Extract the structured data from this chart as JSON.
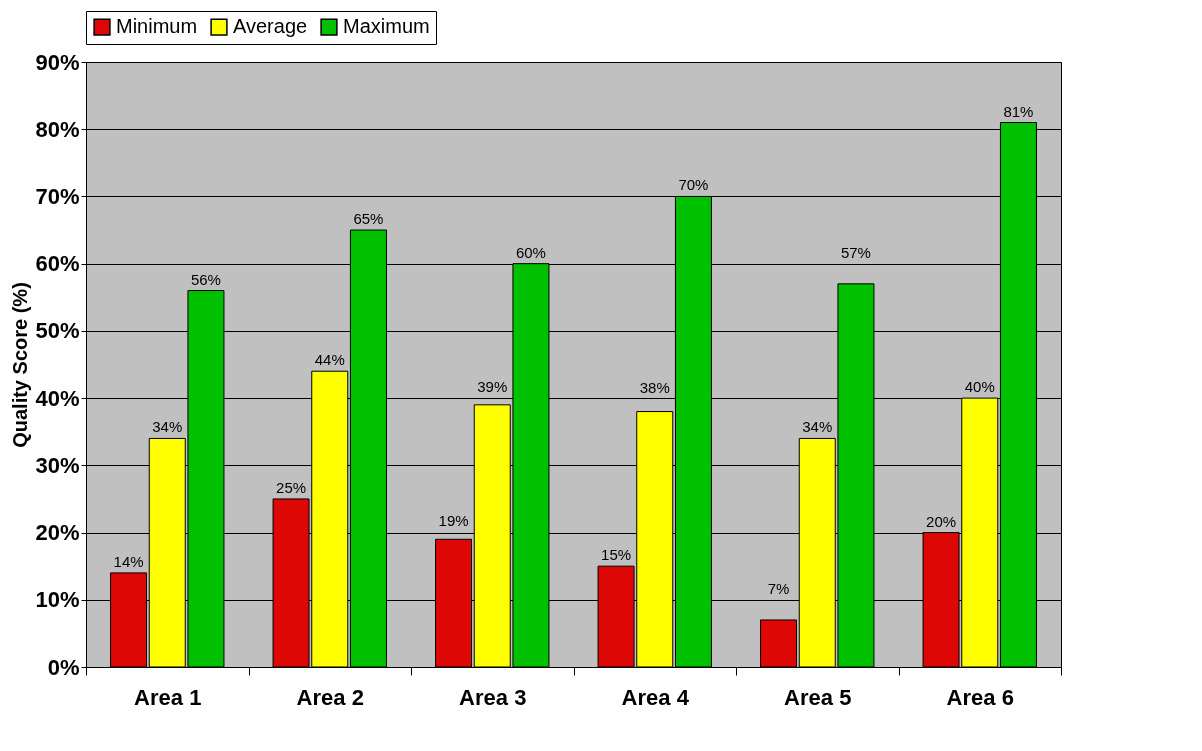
{
  "chart_data": {
    "type": "bar",
    "ylabel": "Quality Score (%)",
    "categories": [
      "Area 1",
      "Area 2",
      "Area 3",
      "Area 4",
      "Area 5",
      "Area 6"
    ],
    "series": [
      {
        "name": "Minimum",
        "color": "#dd0806",
        "values": [
          14,
          25,
          19,
          15,
          7,
          20
        ],
        "value_labels": [
          "14%",
          "25%",
          "19%",
          "15%",
          "7%",
          "20%"
        ]
      },
      {
        "name": "Average",
        "color": "#ffff00",
        "values": [
          34,
          44,
          39,
          38,
          34,
          40
        ],
        "value_labels": [
          "34%",
          "44%",
          "39%",
          "38%",
          "34%",
          "40%"
        ]
      },
      {
        "name": "Maximum",
        "color": "#00c000",
        "values": [
          56,
          65,
          60,
          70,
          57,
          81
        ],
        "value_labels": [
          "56%",
          "65%",
          "60%",
          "70%",
          "57%",
          "81%"
        ]
      }
    ],
    "ylim": [
      0,
      90
    ],
    "yticks": [
      {
        "value": 0,
        "label": "0%"
      },
      {
        "value": 10,
        "label": "10%"
      },
      {
        "value": 20,
        "label": "20%"
      },
      {
        "value": 30,
        "label": "30%"
      },
      {
        "value": 40,
        "label": "40%"
      },
      {
        "value": 50,
        "label": "50%"
      },
      {
        "value": 60,
        "label": "60%"
      },
      {
        "value": 70,
        "label": "70%"
      },
      {
        "value": 80,
        "label": "80%"
      },
      {
        "value": 90,
        "label": "90%"
      }
    ],
    "grid": "y",
    "legend": "top"
  }
}
